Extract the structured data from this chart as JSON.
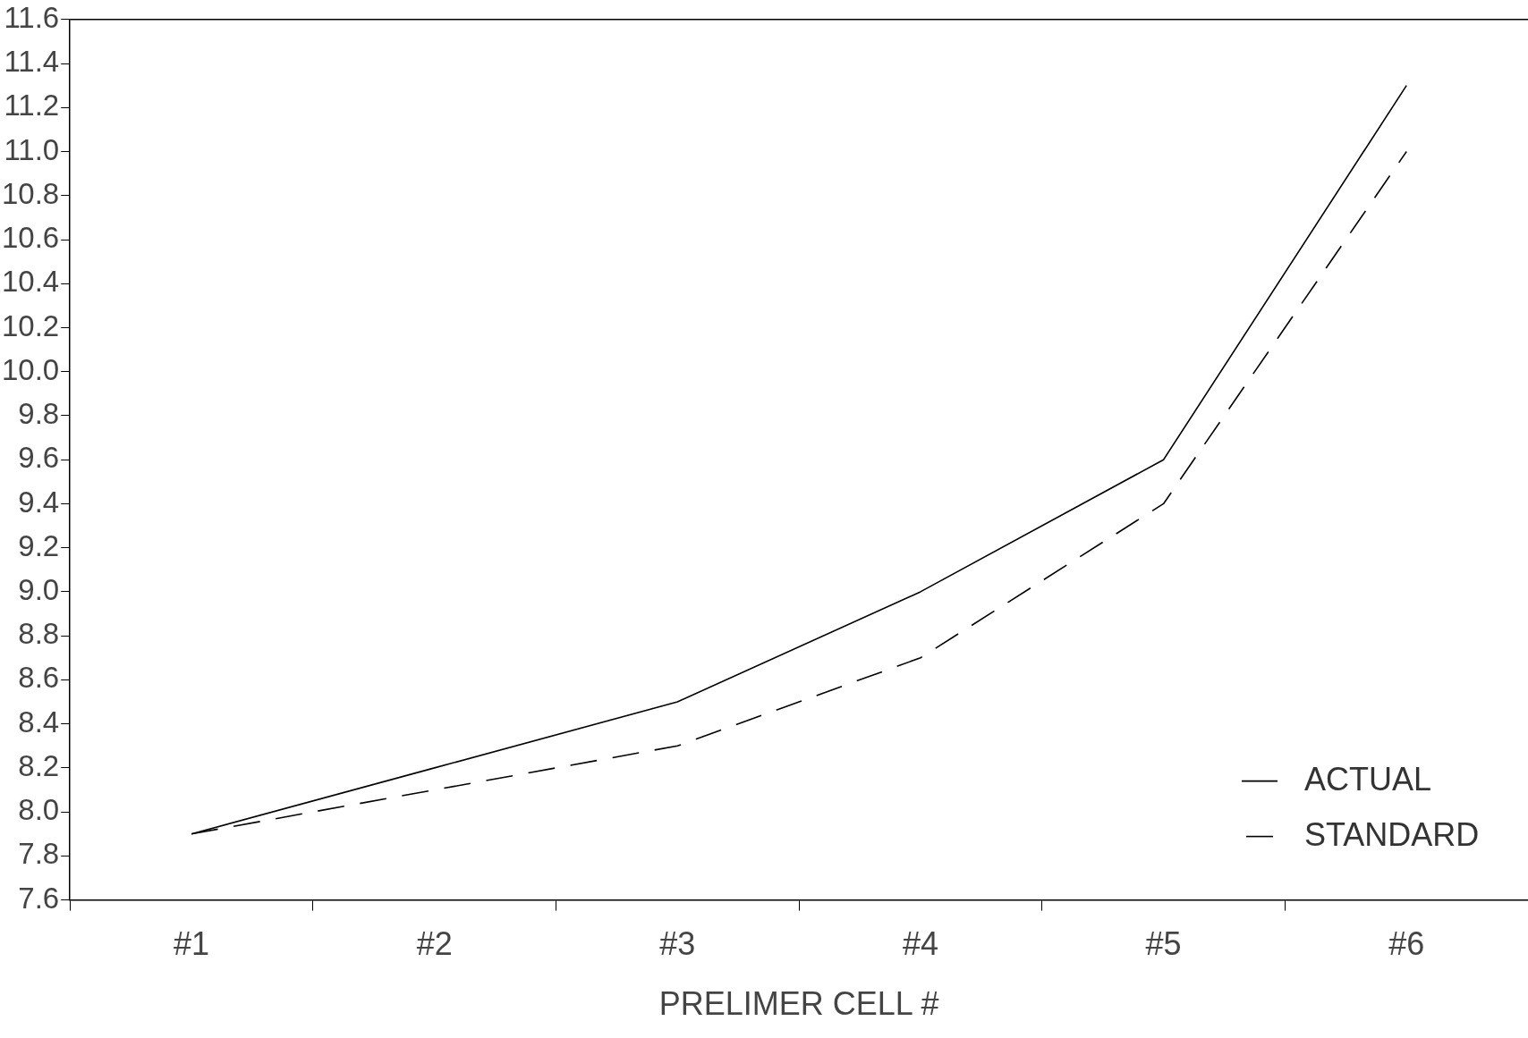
{
  "chart_data": {
    "type": "line",
    "xlabel": "PRELIMER CELL #",
    "categories": [
      "#1",
      "#2",
      "#3",
      "#4",
      "#5",
      "#6"
    ],
    "series": [
      {
        "name": "ACTUAL",
        "color": "#000000",
        "line_style": "solid",
        "values": [
          7.9,
          8.2,
          8.5,
          9.0,
          9.6,
          11.3
        ]
      },
      {
        "name": "STANDARD",
        "color": "#000000",
        "line_style": "dashed",
        "values": [
          7.9,
          8.1,
          8.3,
          8.7,
          9.4,
          11.0
        ]
      }
    ],
    "ylim": [
      7.6,
      11.6
    ],
    "yticks": [
      {
        "value": 7.6,
        "label": "7.6"
      },
      {
        "value": 7.8,
        "label": "7.8"
      },
      {
        "value": 8.0,
        "label": "8.0"
      },
      {
        "value": 8.2,
        "label": "8.2"
      },
      {
        "value": 8.4,
        "label": "8.4"
      },
      {
        "value": 8.6,
        "label": "8.6"
      },
      {
        "value": 8.8,
        "label": "8.8"
      },
      {
        "value": 9.0,
        "label": "9.0"
      },
      {
        "value": 9.2,
        "label": "9.2"
      },
      {
        "value": 9.4,
        "label": "9.4"
      },
      {
        "value": 9.6,
        "label": "9.6"
      },
      {
        "value": 9.8,
        "label": "9.8"
      },
      {
        "value": 10.0,
        "label": "10.0"
      },
      {
        "value": 10.2,
        "label": "10.2"
      },
      {
        "value": 10.4,
        "label": "10.4"
      },
      {
        "value": 10.6,
        "label": "10.6"
      },
      {
        "value": 10.8,
        "label": "10.8"
      },
      {
        "value": 11.0,
        "label": "11.0"
      },
      {
        "value": 11.2,
        "label": "11.2"
      },
      {
        "value": 11.4,
        "label": "11.4"
      },
      {
        "value": 11.6,
        "label": "11.6"
      }
    ],
    "grid": false,
    "legend": "bottom right",
    "marker": "none"
  }
}
